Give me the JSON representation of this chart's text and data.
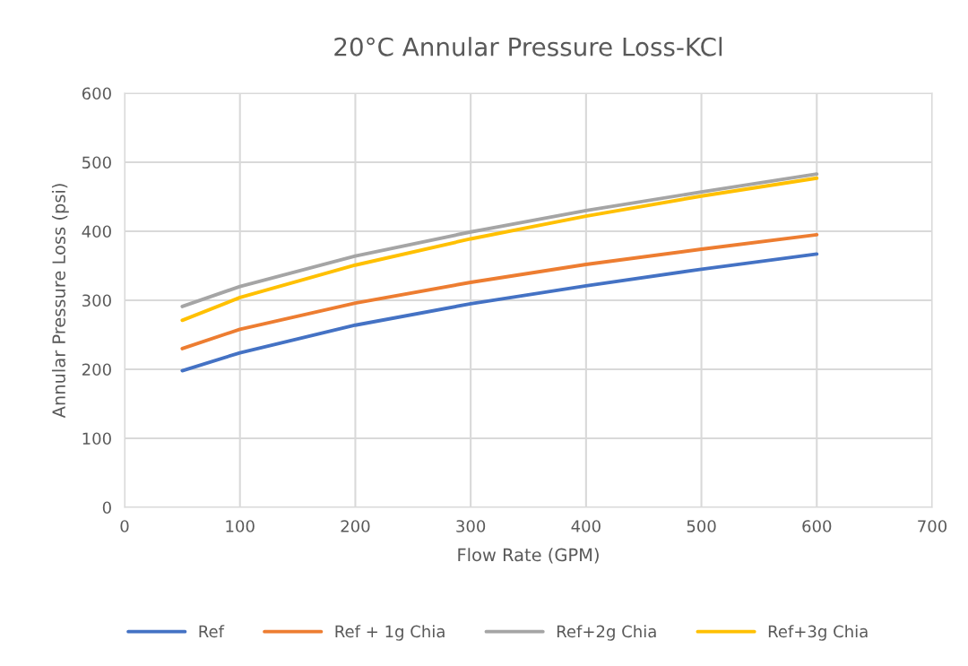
{
  "chart_data": {
    "type": "line",
    "title": "20°C Annular Pressure Loss-KCl",
    "xlabel": "Flow Rate (GPM)",
    "ylabel": "Annular Pressure Loss (psi)",
    "x": [
      50,
      100,
      200,
      300,
      400,
      500,
      600
    ],
    "series": [
      {
        "name": "Ref",
        "color": "#4472c4",
        "values": [
          198,
          224,
          264,
          295,
          321,
          345,
          367
        ]
      },
      {
        "name": "Ref + 1g Chia",
        "color": "#ed7d31",
        "values": [
          230,
          258,
          296,
          326,
          352,
          374,
          395
        ]
      },
      {
        "name": "Ref+2g Chia",
        "color": "#a5a5a5",
        "values": [
          291,
          320,
          364,
          399,
          430,
          457,
          483
        ]
      },
      {
        "name": "Ref+3g Chia",
        "color": "#ffc000",
        "values": [
          271,
          304,
          351,
          389,
          422,
          451,
          477
        ]
      }
    ],
    "xlim": [
      0,
      700
    ],
    "xticks": [
      0,
      100,
      200,
      300,
      400,
      500,
      600,
      700
    ],
    "ylim": [
      0,
      600
    ],
    "yticks": [
      0,
      100,
      200,
      300,
      400,
      500,
      600
    ],
    "grid": true,
    "legend": "bottom",
    "marker": "none",
    "line_style": "solid"
  }
}
